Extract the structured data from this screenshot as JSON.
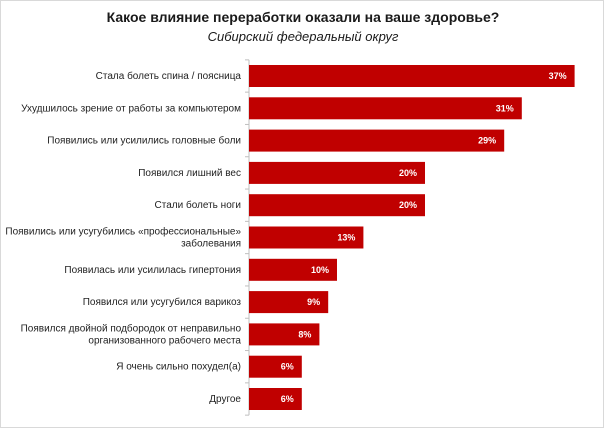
{
  "title": "Какое влияние переработки оказали на ваше здоровье?",
  "subtitle": "Сибирский федеральный округ",
  "chart_data": {
    "type": "bar",
    "orientation": "horizontal",
    "title": "Какое влияние переработки оказали на ваше здоровье?",
    "subtitle": "Сибирский федеральный округ",
    "bar_color": "#c00000",
    "xlim": [
      0,
      40
    ],
    "grid": false,
    "categories": [
      [
        "Стала болеть спина / поясница"
      ],
      [
        "Ухудшилось зрение от работы за компьютером"
      ],
      [
        "Появились или усилились головные боли"
      ],
      [
        "Появился лишний вес"
      ],
      [
        "Стали болеть ноги"
      ],
      [
        "Появились или усугубились «профессиональные»",
        "заболевания"
      ],
      [
        "Появилась или усилилась гипертония"
      ],
      [
        "Появился или усугубился варикоз"
      ],
      [
        "Появился двойной подбородок от неправильно",
        "организованного рабочего места"
      ],
      [
        "Я очень сильно похудел(а)"
      ],
      [
        "Другое"
      ]
    ],
    "values": [
      37,
      31,
      29,
      20,
      20,
      13,
      10,
      9,
      8,
      6,
      6
    ],
    "value_labels": [
      "37%",
      "31%",
      "29%",
      "20%",
      "20%",
      "13%",
      "10%",
      "9%",
      "8%",
      "6%",
      "6%"
    ]
  }
}
